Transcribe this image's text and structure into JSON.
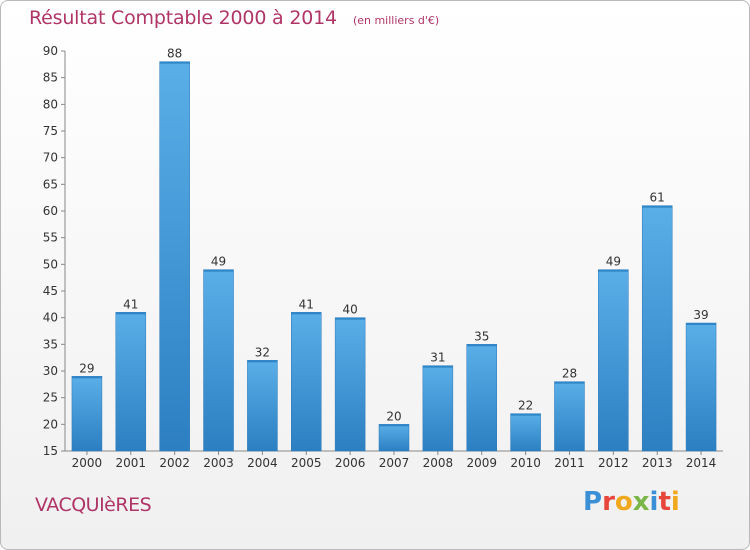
{
  "title": "Résultat Comptable 2000 à 2014",
  "title_unit": "(en milliers d'€)",
  "place": "VACQUIèRES",
  "logo": {
    "letters": [
      "P",
      "r",
      "o",
      "x",
      "i",
      "t",
      "i"
    ],
    "colors": [
      "#3a8fd6",
      "#e8463b",
      "#f2a81d",
      "#7ab648",
      "#3a8fd6",
      "#e8463b",
      "#f2a81d"
    ]
  },
  "colors": {
    "bar": "#3f98d6",
    "title": "#b03567"
  },
  "chart_data": {
    "type": "bar",
    "categories": [
      "2000",
      "2001",
      "2002",
      "2003",
      "2004",
      "2005",
      "2006",
      "2007",
      "2008",
      "2009",
      "2010",
      "2011",
      "2012",
      "2013",
      "2014"
    ],
    "values": [
      29,
      41,
      88,
      49,
      32,
      41,
      40,
      20,
      31,
      35,
      22,
      28,
      49,
      61,
      39
    ],
    "title": "Résultat Comptable 2000 à 2014",
    "ylim": [
      15,
      90
    ],
    "yticks": [
      15,
      20,
      25,
      30,
      35,
      40,
      45,
      50,
      55,
      60,
      65,
      70,
      75,
      80,
      85,
      90
    ],
    "grid": false
  }
}
